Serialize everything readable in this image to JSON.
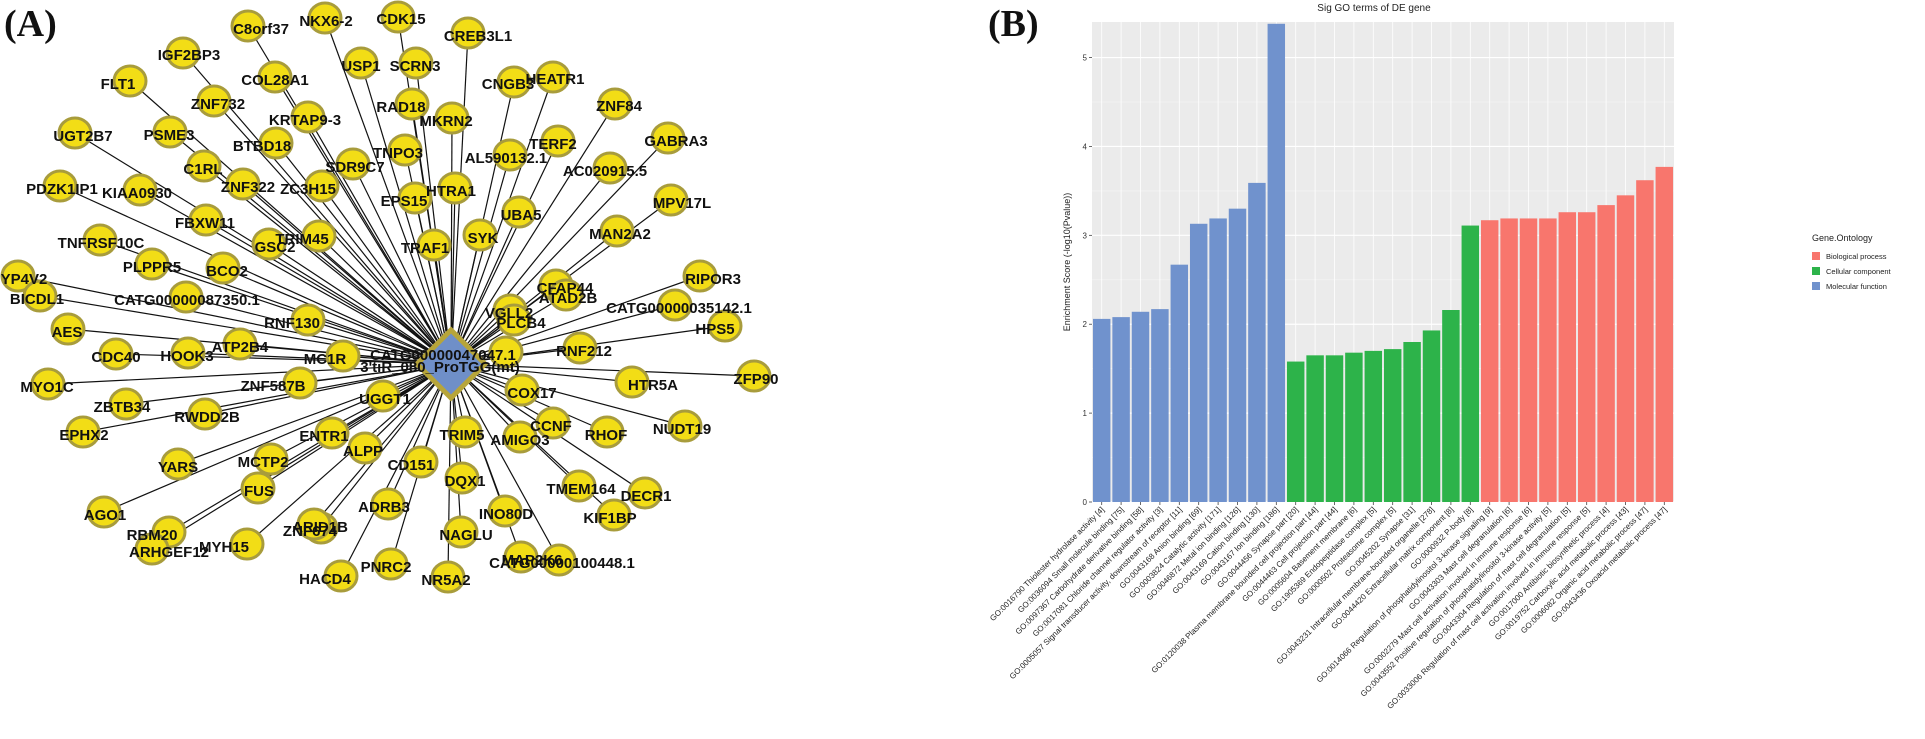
{
  "panel_a": {
    "label": "(A)",
    "hub": "3'tiR_080_ProTGG(mt)",
    "genes": [
      "NKX6-2",
      "CDK15",
      "C8orf37",
      "IGF2BP3",
      "CREB3L1",
      "USP1",
      "SCRN3",
      "FLT1",
      "COL28A1",
      "ZNF732",
      "HEATR1",
      "CNGB3",
      "RAD18",
      "KRTAP9-3",
      "ZNF84",
      "MKRN2",
      "UGT2B7",
      "PSME3",
      "TERF2",
      "BTBD18",
      "GABRA3",
      "C1RL",
      "AL590132.1",
      "TNPO3",
      "SDR9C7",
      "ZNF322",
      "ZC3H15",
      "AC020915.5",
      "HTRA1",
      "PDZK1IP1",
      "KIAA0930",
      "FBXW11",
      "EPS15",
      "UBA5",
      "MPV17L",
      "TRIM45",
      "SYK",
      "GSC2",
      "MAN2A2",
      "TRAF1",
      "TNFRSF10C",
      "RIPOR3",
      "YP4V2",
      "PLPPR5",
      "BCO2",
      "CFAP44",
      "CATG00000035142.1",
      "VGLL2",
      "BICDL1",
      "CATG00000087350.1",
      "ATAD2B",
      "AES",
      "RNF130",
      "PLCB4",
      "HPS5",
      "ATP2B4",
      "CDC40",
      "HOOK3",
      "MC1R",
      "CATG00000047047.1",
      "RNF212",
      "HTR5A",
      "COX17",
      "MYO1C",
      "ZNF587B",
      "ZFP90",
      "CCNF",
      "ZBTB34",
      "RHOF",
      "UGGT1",
      "RWDD2B",
      "TRIM5",
      "AMIGO3",
      "NUDT19",
      "ENTR1",
      "EPHX2",
      "MCTP2",
      "DQX1",
      "ALPP",
      "CD151",
      "TMEM164",
      "YARS",
      "ZNF674",
      "AGO1",
      "FUS",
      "INO80D",
      "DECR1",
      "NAGLU",
      "ADRB3",
      "RBM20",
      "KIF1BP",
      "MAP2K6",
      "ARID1B",
      "MYH15",
      "ARHGEF12",
      "CATG00000100448.1",
      "PNRC2",
      "NR5A2",
      "HACD4"
    ]
  },
  "panel_b": {
    "label": "(B)",
    "colors": {
      "Biological process": "#f8766d",
      "Cellular component": "#2db34a",
      "Molecular function": "#7092cd"
    }
  },
  "chart_data": {
    "type": "bar",
    "title": "Sig GO terms of DE gene",
    "ylabel": "Enrichment Score (-log10(Pvalue))",
    "ylim": [
      0,
      5.4
    ],
    "yticks": [
      "0",
      "1",
      "2",
      "3",
      "4",
      "5"
    ],
    "grid": true,
    "legend": {
      "title": "Gene.Ontology",
      "placement": "right",
      "items": [
        "Biological process",
        "Cellular component",
        "Molecular function"
      ]
    },
    "categories": [
      "GO:0016790 Thiolester hydrolase activity [4]",
      "GO:0036094 Small molecule binding [75]",
      "GO:0097367 Carbohydrate derivative binding [58]",
      "GO:0017081 Chloride channel regulator activity [3]",
      "GO:0005057 Signal transducer activity, downstream of receptor [11]",
      "GO:0043168 Anion binding [69]",
      "GO:0003824 Catalytic activity [171]",
      "GO:0046872 Metal ion binding [126]",
      "GO:0043169 Cation binding [130]",
      "GO:0043167 Ion binding [186]",
      "GO:0044456 Synapse part [20]",
      "GO:0120038 Plasma membrane bounded cell projection part [44]",
      "GO:0044463 Cell projection part [44]",
      "GO:0005604 Basement membrane [6]",
      "GO:1905369 Endopeptidase complex [5]",
      "GO:0000502 Proteasome complex [5]",
      "GO:0045202 Synapse [31]",
      "GO:0043231 Intracellular membrane-bounded organelle [278]",
      "GO:0044420 Extracellular matrix component [8]",
      "GO:0000932 P-body [8]",
      "GO:0014066 Regulation of phosphatidylinositol 3-kinase signaling [9]",
      "GO:0043303 Mast cell degranulation [6]",
      "GO:0002279 Mast cell activation involved in immune response [6]",
      "GO:0043552 Positive regulation of phosphatidylinositol 3-kinase activity [5]",
      "GO:0043304 Regulation of mast cell degranulation [5]",
      "GO:0033006 Regulation of mast cell activation involved in immune response [5]",
      "GO:0017000 Antibiotic biosynthetic process [4]",
      "GO:0019752 Carboxylic acid metabolic process [43]",
      "GO:0006082 Organic acid metabolic process [47]",
      "GO:0043436 Oxoacid metabolic process [47]"
    ],
    "values": [
      2.06,
      2.08,
      2.14,
      2.17,
      2.67,
      3.13,
      3.19,
      3.3,
      3.59,
      5.38,
      1.58,
      1.65,
      1.65,
      1.68,
      1.7,
      1.72,
      1.8,
      1.93,
      2.16,
      3.11,
      3.17,
      3.19,
      3.19,
      3.19,
      3.26,
      3.26,
      3.34,
      3.45,
      3.62,
      3.77
    ],
    "groups": [
      "Molecular function",
      "Molecular function",
      "Molecular function",
      "Molecular function",
      "Molecular function",
      "Molecular function",
      "Molecular function",
      "Molecular function",
      "Molecular function",
      "Molecular function",
      "Cellular component",
      "Cellular component",
      "Cellular component",
      "Cellular component",
      "Cellular component",
      "Cellular component",
      "Cellular component",
      "Cellular component",
      "Cellular component",
      "Cellular component",
      "Biological process",
      "Biological process",
      "Biological process",
      "Biological process",
      "Biological process",
      "Biological process",
      "Biological process",
      "Biological process",
      "Biological process",
      "Biological process"
    ]
  }
}
